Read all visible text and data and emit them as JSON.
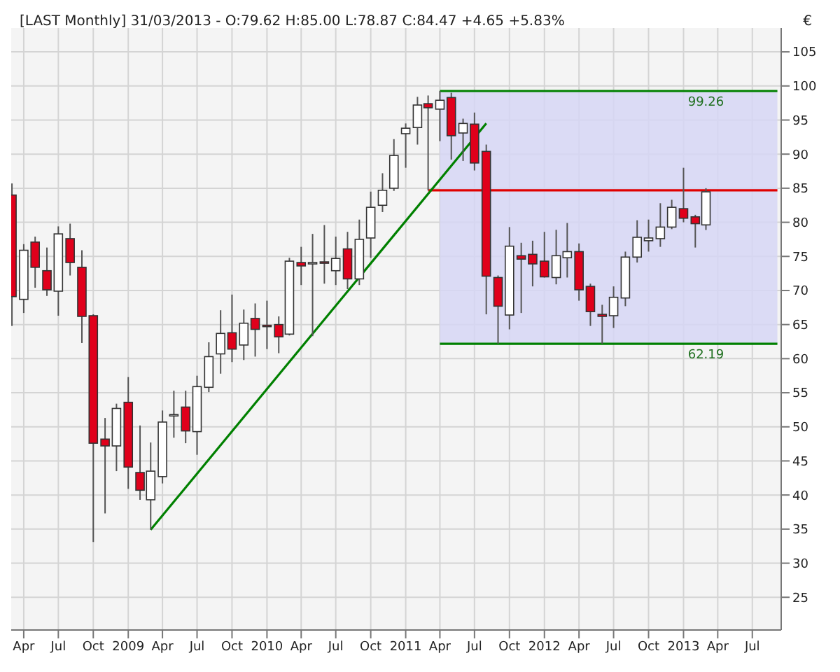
{
  "chart_data": {
    "type": "candlestick",
    "title": "[LAST Monthly] 31/03/2013 - O:79.62 H:85.00 L:78.87 C:84.47 +4.65 +5.83%",
    "ylabel": "€",
    "x": [
      "2008-03",
      "2008-04",
      "2008-05",
      "2008-06",
      "2008-07",
      "2008-08",
      "2008-09",
      "2008-10",
      "2008-11",
      "2008-12",
      "2009-01",
      "2009-02",
      "2009-03",
      "2009-04",
      "2009-05",
      "2009-06",
      "2009-07",
      "2009-08",
      "2009-09",
      "2009-10",
      "2009-11",
      "2009-12",
      "2010-01",
      "2010-02",
      "2010-03",
      "2010-04",
      "2010-05",
      "2010-06",
      "2010-07",
      "2010-08",
      "2010-09",
      "2010-10",
      "2010-11",
      "2010-12",
      "2011-01",
      "2011-02",
      "2011-03",
      "2011-04",
      "2011-05",
      "2011-06",
      "2011-07",
      "2011-08",
      "2011-09",
      "2011-10",
      "2011-11",
      "2011-12",
      "2012-01",
      "2012-02",
      "2012-03",
      "2012-04",
      "2012-05",
      "2012-06",
      "2012-07",
      "2012-08",
      "2012-09",
      "2012-10",
      "2012-11",
      "2012-12",
      "2013-01",
      "2013-02",
      "2013-03"
    ],
    "ohlc": [
      [
        84.0,
        85.7,
        64.8,
        69.1
      ],
      [
        68.7,
        76.8,
        66.7,
        75.9
      ],
      [
        77.1,
        77.9,
        70.4,
        73.4
      ],
      [
        72.9,
        76.3,
        69.2,
        70.1
      ],
      [
        69.9,
        79.4,
        66.3,
        78.3
      ],
      [
        77.6,
        79.8,
        72.2,
        74.1
      ],
      [
        73.4,
        75.9,
        62.3,
        66.2
      ],
      [
        66.3,
        66.5,
        33.1,
        47.6
      ],
      [
        48.2,
        51.3,
        37.3,
        47.2
      ],
      [
        47.2,
        53.4,
        43.5,
        52.7
      ],
      [
        53.6,
        57.3,
        40.9,
        44.1
      ],
      [
        43.3,
        50.2,
        39.3,
        40.7
      ],
      [
        39.3,
        47.7,
        34.9,
        43.5
      ],
      [
        42.7,
        52.4,
        41.7,
        50.7
      ],
      [
        51.6,
        55.3,
        48.4,
        51.8
      ],
      [
        52.9,
        55.3,
        47.6,
        49.4
      ],
      [
        49.3,
        57.5,
        45.9,
        55.9
      ],
      [
        55.8,
        62.4,
        55.1,
        60.3
      ],
      [
        60.7,
        67.1,
        57.8,
        63.7
      ],
      [
        63.8,
        69.4,
        59.5,
        61.4
      ],
      [
        62.0,
        67.2,
        59.8,
        65.2
      ],
      [
        65.9,
        68.1,
        60.3,
        64.3
      ],
      [
        64.9,
        68.5,
        61.4,
        64.7
      ],
      [
        65.0,
        66.2,
        60.8,
        63.2
      ],
      [
        63.6,
        74.8,
        63.4,
        74.3
      ],
      [
        74.1,
        76.4,
        70.8,
        73.6
      ],
      [
        74.0,
        78.3,
        63.3,
        74.1
      ],
      [
        74.2,
        79.6,
        71.0,
        74.0
      ],
      [
        72.9,
        77.9,
        70.8,
        74.7
      ],
      [
        76.1,
        78.6,
        70.2,
        71.7
      ],
      [
        71.7,
        80.4,
        70.8,
        77.5
      ],
      [
        77.7,
        84.5,
        74.8,
        82.2
      ],
      [
        82.5,
        87.2,
        81.5,
        84.7
      ],
      [
        85.0,
        92.2,
        84.6,
        89.8
      ],
      [
        93.0,
        94.5,
        88.0,
        93.8
      ],
      [
        93.9,
        98.4,
        91.4,
        97.2
      ],
      [
        97.4,
        98.6,
        84.7,
        96.8
      ],
      [
        96.6,
        99.26,
        91.9,
        97.9
      ],
      [
        98.3,
        99.0,
        89.2,
        92.7
      ],
      [
        93.1,
        95.2,
        89.0,
        94.5
      ],
      [
        94.4,
        96.1,
        87.6,
        88.7
      ],
      [
        90.4,
        91.4,
        66.5,
        72.1
      ],
      [
        71.9,
        72.2,
        62.19,
        67.7
      ],
      [
        66.4,
        79.3,
        64.3,
        76.5
      ],
      [
        75.1,
        77.0,
        66.7,
        74.6
      ],
      [
        75.3,
        77.3,
        70.6,
        73.9
      ],
      [
        74.3,
        78.6,
        71.9,
        72.0
      ],
      [
        71.9,
        78.9,
        70.9,
        75.1
      ],
      [
        74.8,
        79.9,
        71.9,
        75.7
      ],
      [
        75.7,
        76.9,
        68.5,
        70.1
      ],
      [
        70.6,
        71.0,
        64.8,
        66.9
      ],
      [
        66.5,
        67.9,
        62.19,
        66.2
      ],
      [
        66.3,
        70.6,
        64.5,
        69.0
      ],
      [
        68.9,
        75.7,
        67.7,
        74.9
      ],
      [
        74.9,
        80.3,
        74.1,
        77.8
      ],
      [
        77.3,
        80.4,
        75.7,
        77.7
      ],
      [
        77.6,
        82.8,
        76.4,
        79.3
      ],
      [
        79.3,
        83.3,
        79.0,
        82.2
      ],
      [
        82.0,
        88.0,
        80.0,
        80.6
      ],
      [
        80.8,
        81.1,
        76.3,
        79.8
      ],
      [
        79.62,
        85.0,
        78.87,
        84.47
      ]
    ],
    "series": [
      {
        "type": "line",
        "color": "#008000",
        "x": [
          "2011-04",
          "2013-09-05"
        ],
        "values": [
          99.26,
          99.26
        ],
        "lower": [
          62.19,
          62.19
        ],
        "upper": [
          99.26,
          99.26
        ]
      },
      {
        "type": "line",
        "color": "#008000",
        "x": [
          "2011-04",
          "2013-09-05"
        ],
        "values": [
          62.19,
          62.19
        ]
      },
      {
        "type": "line",
        "color": "#e00000",
        "x": [
          "2011-03",
          "2013-09-05"
        ],
        "values": [
          84.7,
          84.7
        ]
      },
      {
        "type": "line",
        "color": "#008000",
        "x": [
          "2009-03",
          "2011-08"
        ],
        "values": [
          34.9,
          94.5
        ]
      }
    ],
    "annotations": [
      {
        "text": "99.26",
        "x": "2013-03",
        "y": 99.26
      },
      {
        "text": "62.19",
        "x": "2013-03",
        "y": 62.19
      }
    ],
    "xlim": [
      "2008-02-28",
      "2013-09-15"
    ],
    "ylim": [
      20.2,
      108.5
    ],
    "xticks": [
      {
        "value": "2008-04",
        "label": "Apr"
      },
      {
        "value": "2008-07",
        "label": "Jul"
      },
      {
        "value": "2008-10",
        "label": "Oct"
      },
      {
        "value": "2009-01",
        "label": "2009"
      },
      {
        "value": "2009-04",
        "label": "Apr"
      },
      {
        "value": "2009-07",
        "label": "Jul"
      },
      {
        "value": "2009-10",
        "label": "Oct"
      },
      {
        "value": "2010-01",
        "label": "2010"
      },
      {
        "value": "2010-04",
        "label": "Apr"
      },
      {
        "value": "2010-07",
        "label": "Jul"
      },
      {
        "value": "2010-10",
        "label": "Oct"
      },
      {
        "value": "2011-01",
        "label": "2011"
      },
      {
        "value": "2011-04",
        "label": "Apr"
      },
      {
        "value": "2011-07",
        "label": "Jul"
      },
      {
        "value": "2011-10",
        "label": "Oct"
      },
      {
        "value": "2012-01",
        "label": "2012"
      },
      {
        "value": "2012-04",
        "label": "Apr"
      },
      {
        "value": "2012-07",
        "label": "Jul"
      },
      {
        "value": "2012-10",
        "label": "Oct"
      },
      {
        "value": "2013-01",
        "label": "2013"
      },
      {
        "value": "2013-04",
        "label": "Apr"
      },
      {
        "value": "2013-07",
        "label": "Jul"
      }
    ],
    "yticks": [
      25,
      30,
      35,
      40,
      45,
      50,
      55,
      60,
      65,
      70,
      75,
      80,
      85,
      90,
      95,
      100,
      105
    ],
    "grid": true,
    "legend": false
  }
}
